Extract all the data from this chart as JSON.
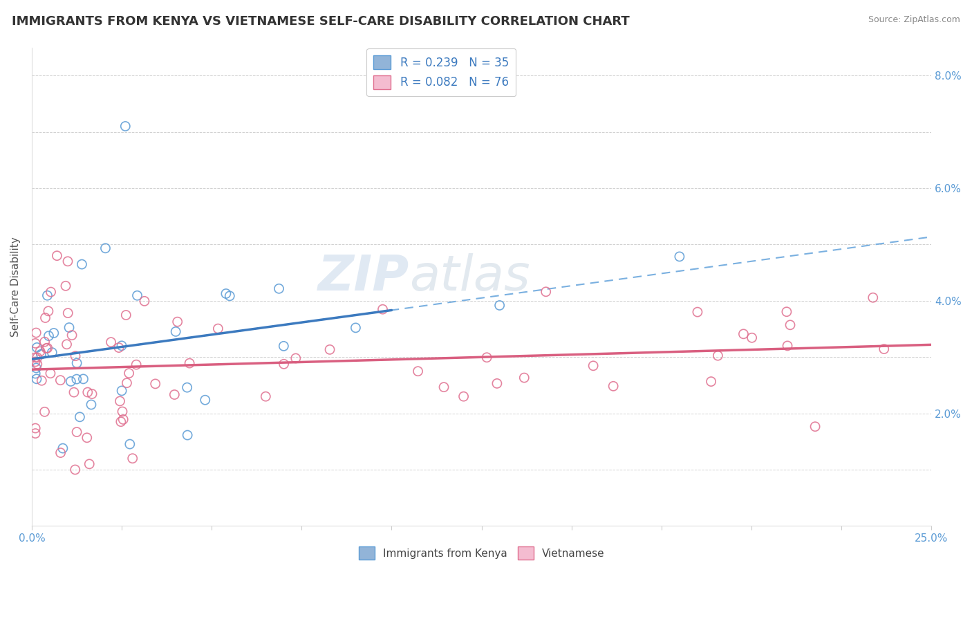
{
  "title": "IMMIGRANTS FROM KENYA VS VIETNAMESE SELF-CARE DISABILITY CORRELATION CHART",
  "source": "Source: ZipAtlas.com",
  "ylabel": "Self-Care Disability",
  "xlim": [
    0.0,
    0.25
  ],
  "ylim": [
    0.0,
    0.085
  ],
  "watermark_zip": "ZIP",
  "watermark_atlas": "atlas",
  "legend1_label": "R = 0.239   N = 35",
  "legend2_label": "R = 0.082   N = 76",
  "kenya_color": "#92b4d8",
  "kenya_edge": "#5b9bd5",
  "viet_color": "#f4bcd0",
  "viet_edge": "#e07090",
  "kenya_line_color": "#3c7abf",
  "viet_line_color": "#d95f80",
  "dash_line_color": "#7ab0e0",
  "legend_label_color": "#3c7abf",
  "tick_color": "#5b9bd5",
  "grid_color": "#cccccc",
  "ylabel_color": "#555555",
  "title_color": "#333333",
  "source_color": "#888888",
  "kenya_R": 0.239,
  "kenya_N": 35,
  "viet_R": 0.082,
  "viet_N": 76,
  "bottom_legend_kenya": "Immigrants from Kenya",
  "bottom_legend_viet": "Vietnamese"
}
